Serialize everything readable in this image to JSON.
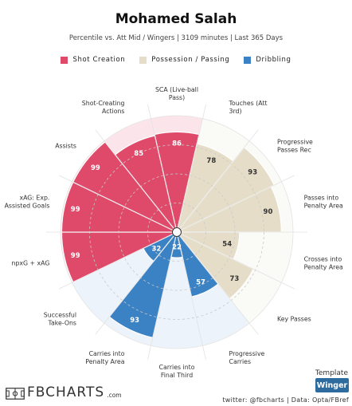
{
  "header": {
    "title": "Mohamed Salah",
    "subtitle": "Percentile vs. Att Mid / Wingers | 3109 minutes | Last 365 Days"
  },
  "legend": [
    {
      "label": "Shot Creation",
      "color": "#e04a6a"
    },
    {
      "label": "Possession / Passing",
      "color": "#e6ddc8"
    },
    {
      "label": "Dribbling",
      "color": "#3b82c4"
    }
  ],
  "chart_data": {
    "type": "polar-bar",
    "rmax": 100,
    "segments": [
      {
        "label": [
          "SCA (Live-ball",
          "Pass)"
        ],
        "value": 86,
        "group": "Shot Creation"
      },
      {
        "label": [
          "Touches (Att",
          "3rd)"
        ],
        "value": 78,
        "group": "Possession / Passing"
      },
      {
        "label": [
          "Progressive",
          "Passes Rec"
        ],
        "value": 93,
        "group": "Possession / Passing"
      },
      {
        "label": [
          "Passes into",
          "Penalty Area"
        ],
        "value": 90,
        "group": "Possession / Passing"
      },
      {
        "label": [
          "Crosses into",
          "Penalty Area"
        ],
        "value": 54,
        "group": "Possession / Passing"
      },
      {
        "label": [
          "Key Passes"
        ],
        "value": 73,
        "group": "Possession / Passing"
      },
      {
        "label": [
          "Progressive",
          "Carries"
        ],
        "value": 57,
        "group": "Dribbling"
      },
      {
        "label": [
          "Carries into",
          "Final Third"
        ],
        "value": 22,
        "group": "Dribbling"
      },
      {
        "label": [
          "Carries into",
          "Penalty Area"
        ],
        "value": 93,
        "group": "Dribbling"
      },
      {
        "label": [
          "Successful",
          "Take-Ons"
        ],
        "value": 32,
        "group": "Dribbling"
      },
      {
        "label": [
          "npxG + xAG"
        ],
        "value": 99,
        "group": "Shot Creation"
      },
      {
        "label": [
          "xAG: Exp.",
          "Assisted Goals"
        ],
        "value": 99,
        "group": "Shot Creation"
      },
      {
        "label": [
          "Assists"
        ],
        "value": 99,
        "group": "Shot Creation"
      },
      {
        "label": [
          "Shot-Creating",
          "Actions"
        ],
        "value": 85,
        "group": "Shot Creation"
      }
    ]
  },
  "footer": {
    "template_label": "Template",
    "template_value": "Winger",
    "credit": "twitter: @fbcharts | Data: Opta/FBref",
    "logo_text": "FBCHARTS",
    "logo_suffix": ".com"
  },
  "colors": {
    "Shot Creation": {
      "fill": "#e04a6a",
      "bg": "#fbe5ea"
    },
    "Possession / Passing": {
      "fill": "#e6ddc8",
      "bg": "#fafaf7"
    },
    "Dribbling": {
      "fill": "#3b82c4",
      "bg": "#edf3fa"
    }
  }
}
